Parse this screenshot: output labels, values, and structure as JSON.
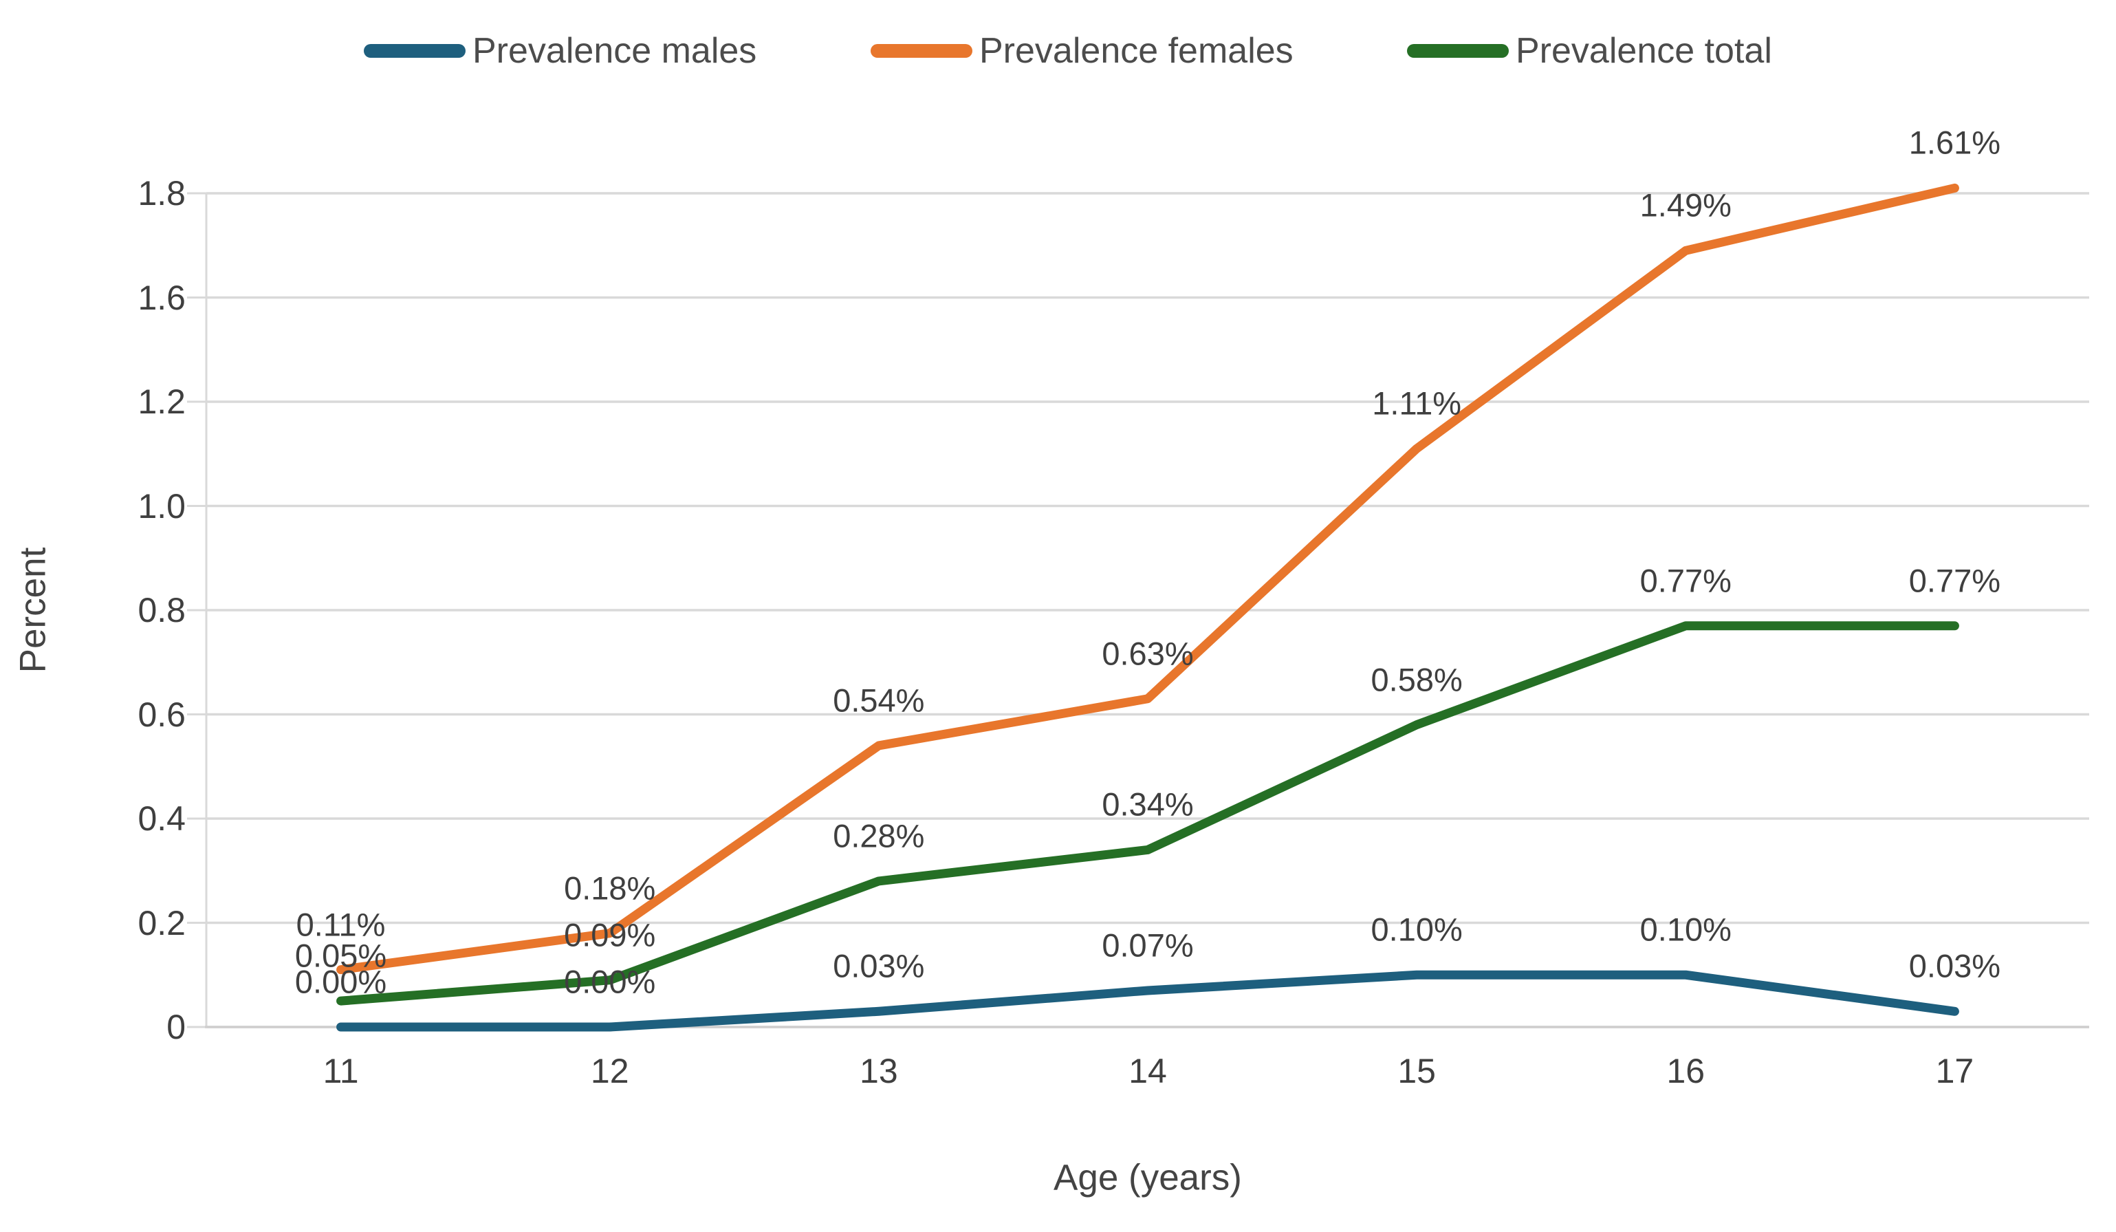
{
  "chart_data": {
    "type": "line",
    "title": "",
    "xlabel": "Age (years)",
    "ylabel": "Percent",
    "x_categories": [
      "11",
      "12",
      "13",
      "14",
      "15",
      "16",
      "17"
    ],
    "ytick_labels_top_to_bottom": [
      "1.8",
      "1.6",
      "1.2",
      "1.0",
      "0.8",
      "0.6",
      "0.4",
      "0.2",
      "0"
    ],
    "y_axis_note_as_shown": "nine evenly spaced gridlines; 1.4 label absent; data plotted so top gridline aligns with ~1.6",
    "plot_value_at_top_gridline": 1.6,
    "plot_value_at_bottom_gridline": 0,
    "grid": "horizontal",
    "legend_position": "top",
    "series": [
      {
        "name": "Prevalence males",
        "color": "#1E5F7E",
        "values": [
          0.0,
          0.0,
          0.03,
          0.07,
          0.1,
          0.1,
          0.03
        ],
        "point_labels": [
          "0.00%",
          "0.00%",
          "0.03%",
          "0.07%",
          "0.10%",
          "0.10%",
          "0.03%"
        ]
      },
      {
        "name": "Prevalence females",
        "color": "#E8762C",
        "values": [
          0.11,
          0.18,
          0.54,
          0.63,
          1.11,
          1.49,
          1.61
        ],
        "point_labels": [
          "0.11%",
          "0.18%",
          "0.54%",
          "0.63%",
          "1.11%",
          "1.49%",
          "1.61%"
        ]
      },
      {
        "name": "Prevalence total",
        "color": "#256F25",
        "values": [
          0.05,
          0.09,
          0.28,
          0.34,
          0.58,
          0.77,
          0.77
        ],
        "point_labels": [
          "0.05%",
          "0.09%",
          "0.28%",
          "0.34%",
          "0.58%",
          "0.77%",
          "0.77%"
        ]
      }
    ],
    "colors": {
      "gridline": "#D9D9D9",
      "axis_line": "#CFCECE",
      "tick_text": "#3f3f3f",
      "legend_text": "#4c4c4c"
    }
  }
}
